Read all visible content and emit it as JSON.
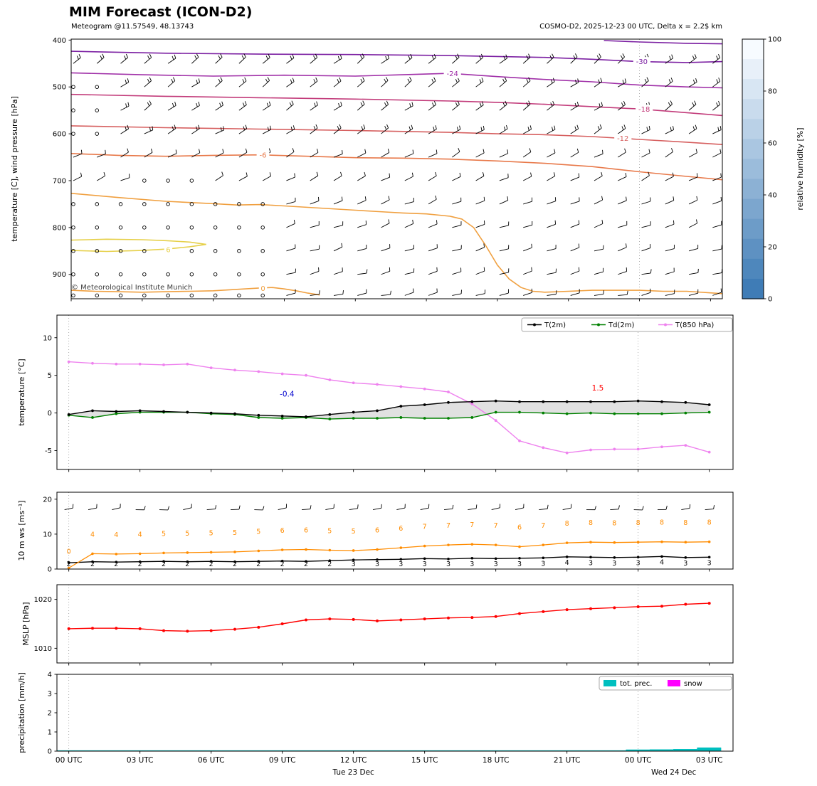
{
  "header": {
    "title": "MIM Forecast (ICON-D2)",
    "subtitle": "Meteogram @11.57549, 48.13743",
    "model_info": "COSMO-D2, 2025-12-23 00 UTC, Delta x = 2.2$ km"
  },
  "watermark": "© Meteorological Institute Munich",
  "time_axis": {
    "xmin": 0,
    "xmax": 27.5,
    "tick_hours": [
      0,
      3,
      6,
      9,
      12,
      15,
      18,
      21,
      24,
      27
    ],
    "tick_labels": [
      "00 UTC",
      "03 UTC",
      "06 UTC",
      "09 UTC",
      "12 UTC",
      "15 UTC",
      "18 UTC",
      "21 UTC",
      "00 UTC",
      "03 UTC"
    ],
    "day_labels": [
      {
        "hour": 12,
        "label": "Tue 23 Dec"
      },
      {
        "hour": 25.5,
        "label": "Wed 24 Dec"
      }
    ],
    "gridline_hours": [
      0,
      24
    ]
  },
  "colorbar": {
    "title": "relative humidity [%]",
    "ticks": [
      0,
      20,
      40,
      60,
      80,
      100
    ],
    "color_top": "#f7fbff",
    "color_bottom": "#3f7cb6",
    "steps": 13
  },
  "chart_data": [
    {
      "id": "pressure-wind",
      "type": "contour",
      "ylabel": "temperature [C], wind pressure [hPa]",
      "ylim": [
        952,
        398
      ],
      "yticks": [
        400,
        500,
        600,
        700,
        800,
        900
      ],
      "contours": [
        {
          "label": "",
          "color": "#7b1fa2",
          "points": [
            [
              22.5,
              401
            ],
            [
              24,
              404
            ],
            [
              26,
              407
            ],
            [
              27.5,
              408
            ]
          ]
        },
        {
          "label": "-30",
          "color": "#7b1fa2",
          "label_hour": 24.1,
          "points": [
            [
              0,
              424
            ],
            [
              4,
              428
            ],
            [
              8,
              430
            ],
            [
              12,
              431
            ],
            [
              16,
              433
            ],
            [
              20,
              437
            ],
            [
              22,
              441
            ],
            [
              24,
              446
            ],
            [
              26,
              448
            ],
            [
              27.5,
              446
            ]
          ]
        },
        {
          "label": "-24",
          "color": "#a030a8",
          "label_hour": 16.1,
          "points": [
            [
              0,
              470
            ],
            [
              3,
              474
            ],
            [
              6,
              477
            ],
            [
              9,
              475
            ],
            [
              12,
              477
            ],
            [
              14,
              474
            ],
            [
              16,
              471
            ],
            [
              18,
              478
            ],
            [
              20,
              484
            ],
            [
              22,
              489
            ],
            [
              24,
              496
            ],
            [
              26,
              500
            ],
            [
              27.5,
              502
            ]
          ]
        },
        {
          "label": "-18",
          "color": "#c23b7a",
          "label_hour": 24.2,
          "points": [
            [
              0,
              516
            ],
            [
              4,
              520
            ],
            [
              8,
              523
            ],
            [
              12,
              526
            ],
            [
              16,
              530
            ],
            [
              18,
              533
            ],
            [
              20,
              537
            ],
            [
              22,
              542
            ],
            [
              24,
              547
            ],
            [
              26,
              555
            ],
            [
              27.5,
              561
            ]
          ]
        },
        {
          "label": "-12",
          "color": "#d65f5f",
          "label_hour": 23.3,
          "points": [
            [
              0,
              583
            ],
            [
              4,
              587
            ],
            [
              8,
              590
            ],
            [
              12,
              593
            ],
            [
              16,
              597
            ],
            [
              18,
              600
            ],
            [
              20,
              602
            ],
            [
              22,
              606
            ],
            [
              24,
              612
            ],
            [
              26,
              618
            ],
            [
              27.5,
              623
            ]
          ]
        },
        {
          "label": "-6",
          "color": "#e8794a",
          "label_hour": 8.1,
          "points": [
            [
              0,
              642
            ],
            [
              2,
              646
            ],
            [
              4,
              648
            ],
            [
              6,
              646
            ],
            [
              8,
              645
            ],
            [
              10,
              648
            ],
            [
              12,
              651
            ],
            [
              14,
              652
            ],
            [
              16,
              654
            ],
            [
              18,
              658
            ],
            [
              20,
              663
            ],
            [
              22,
              670
            ],
            [
              24,
              681
            ],
            [
              26,
              691
            ],
            [
              27.5,
              698
            ]
          ]
        },
        {
          "label": "",
          "color": "#f0a040",
          "points": [
            [
              0,
              727
            ],
            [
              2,
              736
            ],
            [
              4,
              744
            ],
            [
              6,
              749
            ],
            [
              7,
              752
            ],
            [
              8,
              751
            ],
            [
              9,
              754
            ],
            [
              10,
              757
            ],
            [
              11,
              760
            ],
            [
              12,
              763
            ],
            [
              13,
              766
            ],
            [
              14,
              769
            ],
            [
              15,
              771
            ],
            [
              16,
              776
            ],
            [
              16.5,
              782
            ],
            [
              17,
              800
            ],
            [
              17.5,
              838
            ],
            [
              18,
              880
            ],
            [
              18.5,
              910
            ],
            [
              19,
              928
            ],
            [
              19.5,
              936
            ],
            [
              20,
              938
            ],
            [
              21,
              936
            ],
            [
              22,
              934
            ],
            [
              23,
              934
            ],
            [
              24,
              934
            ],
            [
              25,
              936
            ],
            [
              26,
              936
            ],
            [
              27.5,
              941
            ]
          ]
        },
        {
          "label": "0",
          "color": "#f0a040",
          "label_hour": 8.1,
          "label_p": 930,
          "points": [
            [
              0,
              934
            ],
            [
              1,
              936
            ],
            [
              2,
              937
            ],
            [
              3,
              938
            ],
            [
              4,
              937
            ],
            [
              5,
              936
            ],
            [
              6,
              935
            ],
            [
              7,
              932
            ],
            [
              8,
              929
            ],
            [
              8.5,
              928
            ],
            [
              9,
              931
            ],
            [
              9.5,
              935
            ],
            [
              10,
              940
            ],
            [
              10.5,
              944
            ]
          ]
        },
        {
          "label": "6",
          "color": "#e6d04a",
          "label_hour": 4.1,
          "label_p": 847,
          "points": [
            [
              0,
              849
            ],
            [
              1.5,
              851
            ],
            [
              3,
              849
            ],
            [
              4,
              846
            ],
            [
              5,
              841
            ],
            [
              5.7,
              836
            ],
            [
              5,
              831
            ],
            [
              4,
              828
            ],
            [
              3,
              826
            ],
            [
              1.5,
              825
            ],
            [
              0,
              827
            ]
          ]
        }
      ],
      "barbs": {
        "levels": [
          450,
          500,
          550,
          600,
          650,
          700,
          750,
          800,
          850,
          900,
          945
        ]
      }
    },
    {
      "id": "temperature",
      "type": "line",
      "ylabel": "temperature [°C]",
      "ylim": [
        -7.5,
        13
      ],
      "yticks": [
        -5,
        0,
        5,
        10
      ],
      "series": [
        {
          "name": "T(2m)",
          "color": "#000000",
          "values": [
            -0.2,
            0.3,
            0.2,
            0.3,
            0.2,
            0.1,
            0,
            -0.1,
            -0.3,
            -0.4,
            -0.5,
            -0.2,
            0.1,
            0.3,
            0.9,
            1.1,
            1.4,
            1.5,
            1.6,
            1.5,
            1.5,
            1.5,
            1.5,
            1.5,
            1.6,
            1.5,
            1.4,
            1.1
          ]
        },
        {
          "name": "Td(2m)",
          "color": "#008000",
          "values": [
            -0.3,
            -0.6,
            -0.1,
            0.1,
            0.1,
            0.1,
            -0.1,
            -0.2,
            -0.6,
            -0.7,
            -0.6,
            -0.8,
            -0.7,
            -0.7,
            -0.6,
            -0.7,
            -0.7,
            -0.6,
            0.1,
            0.1,
            0,
            -0.1,
            0,
            -0.1,
            -0.1,
            -0.1,
            0,
            0.1
          ]
        },
        {
          "name": "T(850 hPa)",
          "color": "#ee82ee",
          "values": [
            6.8,
            6.6,
            6.5,
            6.5,
            6.4,
            6.5,
            6,
            5.7,
            5.5,
            5.2,
            5,
            4.4,
            4,
            3.8,
            3.5,
            3.2,
            2.8,
            1.2,
            -1,
            -3.7,
            -4.6,
            -5.3,
            -4.9,
            -4.8,
            -4.8,
            -4.5,
            -4.3,
            -5.2
          ]
        }
      ],
      "fill_between": {
        "upper": "T(2m)",
        "lower": "Td(2m)",
        "color": "#dcdcdc"
      },
      "annotations": [
        {
          "text": "-0.4",
          "x": 9.2,
          "y": 2.2,
          "color": "#0000cd"
        },
        {
          "text": "1.5",
          "x": 22.3,
          "y": 3.0,
          "color": "#ff0000"
        }
      ]
    },
    {
      "id": "wind-10m",
      "type": "line",
      "ylabel": "10 m ws [ms⁻¹]",
      "ylim": [
        0,
        22
      ],
      "yticks": [
        0,
        10,
        20
      ],
      "barb_row_y": 17,
      "series": [
        {
          "name": "wind speed",
          "color": "#000000",
          "label_position": "below",
          "values": [
            1.8,
            2.1,
            2,
            2.1,
            2.2,
            2.1,
            2.2,
            2.1,
            2.2,
            2.3,
            2.2,
            2.4,
            2.6,
            2.7,
            2.8,
            3,
            2.9,
            3.1,
            3,
            3.1,
            3.2,
            3.5,
            3.4,
            3.3,
            3.4,
            3.6,
            3.3,
            3.4
          ]
        },
        {
          "name": "wind gust",
          "color": "#ff8c00",
          "label_position": "above",
          "values": [
            0.3,
            4.4,
            4.3,
            4.4,
            4.6,
            4.7,
            4.8,
            4.9,
            5.2,
            5.5,
            5.6,
            5.4,
            5.3,
            5.6,
            6.1,
            6.6,
            6.9,
            7.1,
            6.9,
            6.4,
            6.9,
            7.5,
            7.7,
            7.6,
            7.7,
            7.8,
            7.7,
            7.8
          ]
        }
      ]
    },
    {
      "id": "mslp",
      "type": "line",
      "ylabel": "MSLP [hPa]",
      "ylim": [
        1007,
        1023
      ],
      "yticks": [
        1010,
        1020
      ],
      "series": [
        {
          "name": "MSLP",
          "color": "#ff0000",
          "values": [
            1014,
            1014.1,
            1014.1,
            1014,
            1013.6,
            1013.5,
            1013.6,
            1013.9,
            1014.3,
            1015,
            1015.8,
            1016,
            1015.9,
            1015.6,
            1015.8,
            1016,
            1016.2,
            1016.3,
            1016.5,
            1017.1,
            1017.5,
            1017.9,
            1018.1,
            1018.3,
            1018.5,
            1018.6,
            1019,
            1019.2
          ]
        }
      ]
    },
    {
      "id": "precipitation",
      "type": "bar",
      "ylabel": "precipitation [mm/h]",
      "ylim": [
        0,
        4
      ],
      "yticks": [
        0,
        1,
        2,
        3,
        4
      ],
      "legend": [
        {
          "label": "tot. prec.",
          "color": "#00bfbf"
        },
        {
          "label": "snow",
          "color": "#ff00ff"
        }
      ],
      "series": [
        {
          "name": "tot. prec.",
          "color": "#00bfbf",
          "values": [
            0,
            0,
            0,
            0,
            0,
            0,
            0,
            0,
            0,
            0,
            0,
            0,
            0,
            0,
            0,
            0,
            0,
            0,
            0,
            0,
            0,
            0,
            0,
            0,
            0.04,
            0.05,
            0.07,
            0.15
          ]
        },
        {
          "name": "snow",
          "color": "#ff00ff",
          "values": [
            0,
            0,
            0,
            0,
            0,
            0,
            0,
            0,
            0,
            0,
            0,
            0,
            0,
            0,
            0,
            0,
            0,
            0,
            0,
            0,
            0,
            0,
            0,
            0,
            0,
            0,
            0,
            0
          ]
        }
      ]
    }
  ]
}
